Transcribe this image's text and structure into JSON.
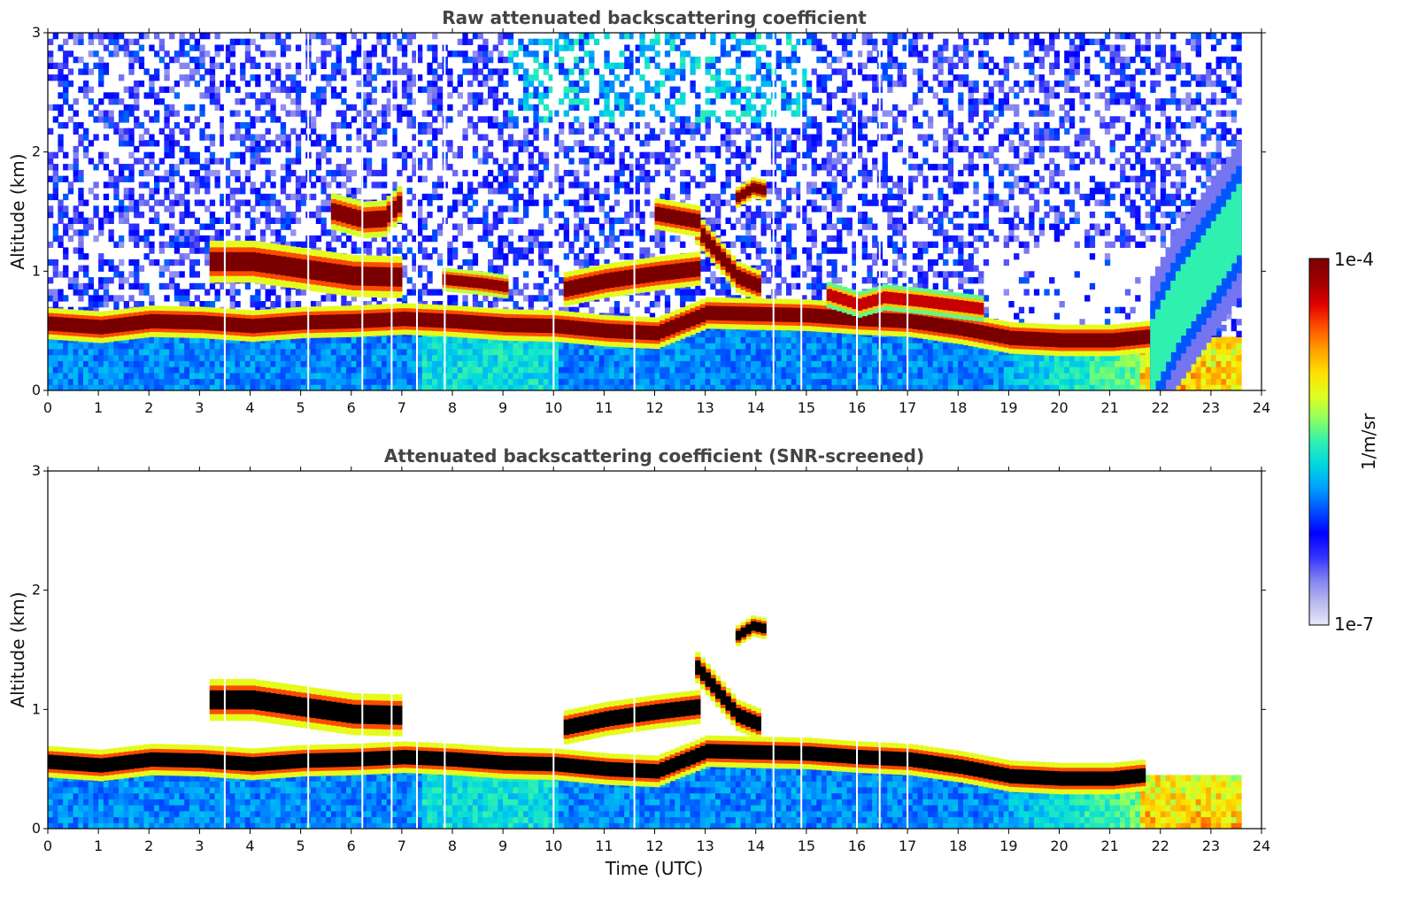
{
  "chart_data": [
    {
      "type": "heatmap",
      "title": "Raw attenuated backscattering coefficient",
      "xlabel": "",
      "ylabel": "Altitude (km)",
      "xlim": [
        0,
        24
      ],
      "ylim": [
        0,
        3
      ],
      "x_ticks": [
        "0",
        "1",
        "2",
        "3",
        "4",
        "5",
        "6",
        "7",
        "8",
        "9",
        "10",
        "11",
        "12",
        "13",
        "14",
        "15",
        "16",
        "17",
        "18",
        "19",
        "20",
        "21",
        "22",
        "23",
        "24"
      ],
      "y_ticks": [
        "0",
        "1",
        "2",
        "3"
      ],
      "data_end_hour": 23.6,
      "screened": false,
      "gap_hours": [
        3.5,
        5.15,
        6.22,
        6.8,
        7.3,
        7.85,
        10.0,
        11.6,
        14.35,
        14.9,
        16.0,
        16.45,
        17.0
      ],
      "features": [
        {
          "name": "boundary layer top",
          "kind": "band",
          "points": [
            [
              0,
              0.56
            ],
            [
              1,
              0.53
            ],
            [
              2,
              0.58
            ],
            [
              3,
              0.57
            ],
            [
              4,
              0.54
            ],
            [
              5,
              0.57
            ],
            [
              6,
              0.58
            ],
            [
              7,
              0.6
            ],
            [
              8,
              0.58
            ],
            [
              9,
              0.55
            ],
            [
              10,
              0.54
            ],
            [
              11,
              0.5
            ],
            [
              12,
              0.48
            ],
            [
              13,
              0.65
            ],
            [
              14,
              0.64
            ],
            [
              15,
              0.63
            ],
            [
              16,
              0.6
            ],
            [
              17,
              0.58
            ],
            [
              18,
              0.52
            ],
            [
              19,
              0.44
            ],
            [
              20,
              0.42
            ],
            [
              21,
              0.42
            ],
            [
              21.7,
              0.45
            ],
            [
              22,
              0.25
            ],
            [
              22.3,
              0.05
            ]
          ],
          "thickness_km": 0.12,
          "log10_value": -4.0
        },
        {
          "name": "lower cloud layer",
          "kind": "band",
          "points": [
            [
              3.2,
              1.08
            ],
            [
              4,
              1.08
            ],
            [
              5,
              1.02
            ],
            [
              6,
              0.96
            ],
            [
              6.9,
              0.95
            ]
          ],
          "thickness_km": 0.16,
          "log10_value": -4.0
        },
        {
          "name": "cloud 8.5h",
          "kind": "band",
          "points": [
            [
              7.8,
              0.93
            ],
            [
              8.5,
              0.9
            ],
            [
              9.0,
              0.87
            ]
          ],
          "thickness_km": 0.09,
          "log10_value": -4.1
        },
        {
          "name": "cloud 11h",
          "kind": "band",
          "points": [
            [
              10.2,
              0.85
            ],
            [
              11,
              0.92
            ],
            [
              12,
              0.98
            ],
            [
              12.8,
              1.02
            ]
          ],
          "thickness_km": 0.13,
          "log10_value": -4.0
        },
        {
          "name": "descending cloud",
          "kind": "band",
          "points": [
            [
              12.8,
              1.35
            ],
            [
              13.2,
              1.15
            ],
            [
              13.6,
              0.95
            ],
            [
              14,
              0.88
            ]
          ],
          "thickness_km": 0.12,
          "log10_value": -4.0
        },
        {
          "name": "elevated cloud 6h",
          "kind": "band",
          "points": [
            [
              5.6,
              1.5
            ],
            [
              6.2,
              1.43
            ],
            [
              6.6,
              1.44
            ],
            [
              6.95,
              1.58
            ]
          ],
          "thickness_km": 0.14,
          "log10_value": -4.05
        },
        {
          "name": "elevated cloud 12.4h",
          "kind": "band",
          "points": [
            [
              12,
              1.48
            ],
            [
              12.4,
              1.45
            ],
            [
              12.8,
              1.42
            ]
          ],
          "thickness_km": 0.12,
          "log10_value": -4.0
        },
        {
          "name": "small cloud 14h",
          "kind": "band",
          "points": [
            [
              13.6,
              1.62
            ],
            [
              13.9,
              1.7
            ],
            [
              14.1,
              1.68
            ]
          ],
          "thickness_km": 0.08,
          "log10_value": -4.0
        },
        {
          "name": "cloud 16h",
          "kind": "band",
          "points": [
            [
              15.4,
              0.8
            ],
            [
              16,
              0.72
            ],
            [
              16.5,
              0.78
            ],
            [
              17.2,
              0.75
            ],
            [
              18.5,
              0.68
            ]
          ],
          "thickness_km": 0.1,
          "log10_value": -4.3
        },
        {
          "name": "evening plume",
          "kind": "band",
          "points": [
            [
              21.8,
              0.3
            ],
            [
              22.3,
              0.7
            ],
            [
              22.8,
              1.0
            ],
            [
              23.3,
              1.3
            ],
            [
              23.6,
              1.5
            ]
          ],
          "thickness_km": 0.6,
          "log10_value": -5.5
        }
      ]
    },
    {
      "type": "heatmap",
      "title": "Attenuated backscattering coefficient (SNR-screened)",
      "xlabel": "Time (UTC)",
      "ylabel": "Altitude (km)",
      "xlim": [
        0,
        24
      ],
      "ylim": [
        0,
        3
      ],
      "x_ticks": [
        "0",
        "1",
        "2",
        "3",
        "4",
        "5",
        "6",
        "7",
        "8",
        "9",
        "10",
        "11",
        "12",
        "13",
        "14",
        "15",
        "16",
        "17",
        "18",
        "19",
        "20",
        "21",
        "22",
        "23",
        "24"
      ],
      "y_ticks": [
        "0",
        "1",
        "2",
        "3"
      ],
      "data_end_hour": 23.6,
      "screened": true,
      "saturation_color": "#000000",
      "gap_hours": [
        3.5,
        5.15,
        6.22,
        6.8,
        7.3,
        7.85,
        10.0,
        11.6,
        14.35,
        14.9,
        16.0,
        16.45,
        17.0
      ],
      "features": [
        {
          "name": "boundary layer top",
          "kind": "band",
          "points": [
            [
              0,
              0.56
            ],
            [
              1,
              0.53
            ],
            [
              2,
              0.58
            ],
            [
              3,
              0.57
            ],
            [
              4,
              0.54
            ],
            [
              5,
              0.57
            ],
            [
              6,
              0.58
            ],
            [
              7,
              0.6
            ],
            [
              8,
              0.58
            ],
            [
              9,
              0.55
            ],
            [
              10,
              0.54
            ],
            [
              11,
              0.5
            ],
            [
              12,
              0.48
            ],
            [
              13,
              0.65
            ],
            [
              14,
              0.64
            ],
            [
              15,
              0.63
            ],
            [
              16,
              0.6
            ],
            [
              17,
              0.58
            ],
            [
              18,
              0.52
            ],
            [
              19,
              0.44
            ],
            [
              20,
              0.42
            ],
            [
              21,
              0.42
            ],
            [
              21.7,
              0.45
            ]
          ],
          "thickness_km": 0.12,
          "log10_value": -4.0
        },
        {
          "name": "lower cloud layer",
          "kind": "band",
          "points": [
            [
              3.2,
              1.08
            ],
            [
              4,
              1.08
            ],
            [
              5,
              1.02
            ],
            [
              6,
              0.96
            ],
            [
              6.9,
              0.95
            ]
          ],
          "thickness_km": 0.16,
          "log10_value": -4.0
        },
        {
          "name": "cloud 11h",
          "kind": "band",
          "points": [
            [
              10.2,
              0.85
            ],
            [
              11,
              0.92
            ],
            [
              12,
              0.98
            ],
            [
              12.8,
              1.02
            ]
          ],
          "thickness_km": 0.13,
          "log10_value": -4.0
        },
        {
          "name": "descending cloud",
          "kind": "band",
          "points": [
            [
              12.8,
              1.35
            ],
            [
              13.2,
              1.15
            ],
            [
              13.6,
              0.95
            ],
            [
              14,
              0.88
            ]
          ],
          "thickness_km": 0.12,
          "log10_value": -4.0
        },
        {
          "name": "small cloud 14h",
          "kind": "band",
          "points": [
            [
              13.6,
              1.62
            ],
            [
              13.9,
              1.7
            ],
            [
              14.1,
              1.68
            ]
          ],
          "thickness_km": 0.08,
          "log10_value": -4.0
        }
      ]
    }
  ],
  "colorbar": {
    "label": "1/m/sr",
    "max_label": "1e-4",
    "min_label": "1e-7",
    "scale": "log",
    "colors": [
      "#e8e8f8",
      "#b8b8f0",
      "#8080f0",
      "#3030ff",
      "#0000ff",
      "#0050ff",
      "#00a0ff",
      "#00d8e0",
      "#30f0b0",
      "#90ff60",
      "#e0ff20",
      "#ffe000",
      "#ffa000",
      "#ff5000",
      "#e00000",
      "#a00000",
      "#7a0000"
    ]
  }
}
